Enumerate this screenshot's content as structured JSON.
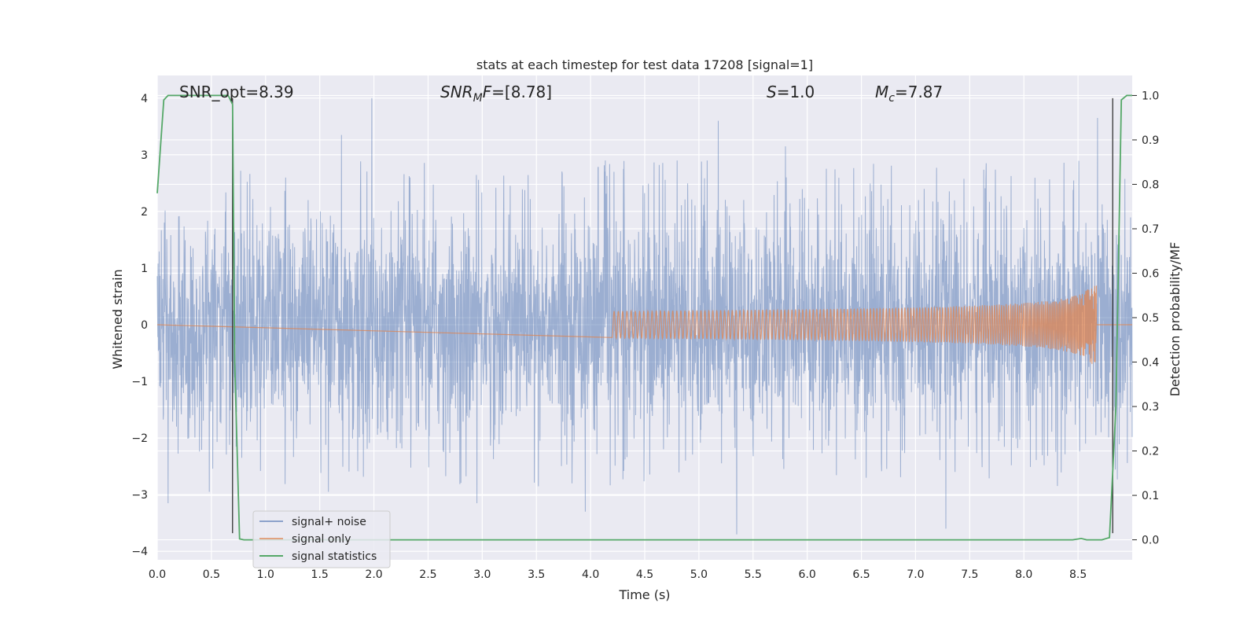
{
  "chart_data": {
    "type": "line",
    "title": "stats at each timestep for test data 17208 [signal=1]",
    "xlabel": "Time (s)",
    "ylabel": "Whitened strain",
    "y2label": "Detection probability/MF",
    "xlim": [
      0,
      9.0
    ],
    "ylim": [
      -4.15,
      4.4
    ],
    "y2lim": [
      -0.045,
      1.045
    ],
    "xticks": [
      0.0,
      0.5,
      1.0,
      1.5,
      2.0,
      2.5,
      3.0,
      3.5,
      4.0,
      4.5,
      5.0,
      5.5,
      6.0,
      6.5,
      7.0,
      7.5,
      8.0,
      8.5
    ],
    "yticks": [
      -4,
      -3,
      -2,
      -1,
      0,
      1,
      2,
      3,
      4
    ],
    "y2ticks": [
      0.0,
      0.1,
      0.2,
      0.3,
      0.4,
      0.5,
      0.6,
      0.7,
      0.8,
      0.9,
      1.0
    ],
    "grid": true,
    "legend_position": "lower-left",
    "annotations": [
      {
        "text": "SNR_opt=8.39",
        "x": 0.2,
        "y": 4.1
      },
      {
        "text": "SNR_MF=[8.78]",
        "x": 2.6,
        "y": 4.1
      },
      {
        "text": "S=1.0",
        "x": 5.6,
        "y": 4.1
      },
      {
        "text": "M_c=7.87",
        "x": 6.6,
        "y": 4.1
      }
    ],
    "vlines": [
      {
        "x": 0.695,
        "y_from": -3.68,
        "y_to": 4.0
      },
      {
        "x": 8.82,
        "y_from": -3.68,
        "y_to": 4.0
      }
    ],
    "series": [
      {
        "name": "signal+ noise",
        "color": "#4c72b0",
        "kind": "noise",
        "x_range": [
          0,
          9.0
        ],
        "typical_amplitude": 1.5,
        "extremes": [
          {
            "x": 0.1,
            "y": -3.15
          },
          {
            "x": 0.48,
            "y": -2.95
          },
          {
            "x": 0.78,
            "y": -2.35
          },
          {
            "x": 1.58,
            "y": -2.95
          },
          {
            "x": 1.7,
            "y": 3.35
          },
          {
            "x": 1.98,
            "y": 4.0
          },
          {
            "x": 2.95,
            "y": -3.15
          },
          {
            "x": 3.95,
            "y": -3.3
          },
          {
            "x": 5.18,
            "y": 3.6
          },
          {
            "x": 5.35,
            "y": -3.7
          },
          {
            "x": 5.8,
            "y": 3.15
          },
          {
            "x": 7.28,
            "y": -3.6
          },
          {
            "x": 8.68,
            "y": 3.65
          }
        ]
      },
      {
        "name": "signal only",
        "color": "#dd8452",
        "kind": "chirp",
        "start": 4.2,
        "end": 8.67,
        "peak_amplitude": 0.95
      },
      {
        "name": "signal statistics",
        "color": "#55a868",
        "axis": "right",
        "x": [
          0.0,
          0.06,
          0.1,
          0.3,
          0.5,
          0.6,
          0.655,
          0.695,
          0.715,
          0.76,
          0.8,
          1.5,
          3.0,
          5.0,
          7.0,
          8.0,
          8.45,
          8.53,
          8.58,
          8.72,
          8.79,
          8.85,
          8.9,
          8.95,
          9.0
        ],
        "y": [
          0.78,
          0.99,
          1.0,
          1.0,
          1.0,
          1.0,
          1.0,
          0.98,
          0.4,
          0.002,
          0.0,
          0.0,
          0.0,
          0.0,
          0.0,
          0.0,
          0.0,
          0.003,
          0.0,
          0.0,
          0.005,
          0.3,
          0.99,
          1.0,
          1.0
        ]
      }
    ]
  }
}
